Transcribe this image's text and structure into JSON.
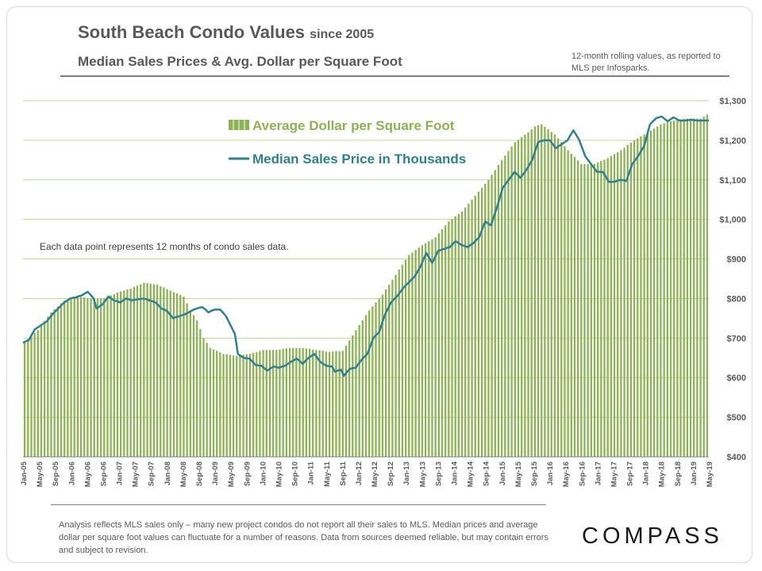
{
  "header": {
    "title": "South Beach Condo Values",
    "title_suffix": "since 2005",
    "subtitle": "Median Sales Prices & Avg. Dollar per Square Foot",
    "note": "12-month rolling values, as reported to MLS per Infosparks."
  },
  "footer": {
    "disclaimer": "Analysis reflects MLS sales only – many new project condos do not report all their sales to MLS. Median prices and average dollar per square foot values can fluctuate for a number of reasons. Data from sources deemed reliable, but may contain errors and subject to revision.",
    "logo": "COMPASS"
  },
  "colors": {
    "bar": "#8db255",
    "line": "#31808f",
    "grid": "#c3d69b",
    "text": "#595959"
  },
  "chart_data": {
    "type": "bar",
    "ylim": [
      400,
      1300
    ],
    "y_ticks": [
      "$400",
      "$500",
      "$600",
      "$700",
      "$800",
      "$900",
      "$1,000",
      "$1,100",
      "$1,200",
      "$1,300"
    ],
    "tick_labels": [
      "Jan-05",
      "May-05",
      "Sep-05",
      "Jan-06",
      "May-06",
      "Sep-06",
      "Jan-07",
      "May-07",
      "Sep-07",
      "Jan-08",
      "May-08",
      "Sep-08",
      "Jan-09",
      "May-09",
      "Sep-09",
      "Jan-10",
      "May-10",
      "Sep-10",
      "Jan-11",
      "May-11",
      "Sep-11",
      "Jan-12",
      "May-12",
      "Sep-12",
      "Jan-13",
      "May-13",
      "Sep-13",
      "Jan-14",
      "May-14",
      "Sep-14",
      "Jan-15",
      "May-15",
      "Sep-15",
      "Jan-16",
      "May-16",
      "Sep-16",
      "Jan-17",
      "May-17",
      "Sep-17",
      "Jan-18",
      "May-18",
      "Sep-18",
      "Jan-19",
      "May-19"
    ],
    "annotation": "Each data point represents 12 months of condo sales data.",
    "series": [
      {
        "name": "Average Dollar per Square Foot",
        "kind": "bar",
        "anchors": [
          [
            0,
            690
          ],
          [
            4,
            720
          ],
          [
            8,
            765
          ],
          [
            12,
            795
          ],
          [
            16,
            805
          ],
          [
            20,
            800
          ],
          [
            24,
            800
          ],
          [
            28,
            815
          ],
          [
            32,
            825
          ],
          [
            36,
            840
          ],
          [
            40,
            835
          ],
          [
            44,
            820
          ],
          [
            48,
            805
          ],
          [
            50,
            770
          ],
          [
            52,
            745
          ],
          [
            54,
            700
          ],
          [
            56,
            675
          ],
          [
            60,
            660
          ],
          [
            64,
            655
          ],
          [
            68,
            660
          ],
          [
            72,
            670
          ],
          [
            76,
            670
          ],
          [
            80,
            675
          ],
          [
            84,
            675
          ],
          [
            88,
            670
          ],
          [
            92,
            665
          ],
          [
            96,
            668
          ],
          [
            100,
            720
          ],
          [
            104,
            770
          ],
          [
            108,
            810
          ],
          [
            112,
            860
          ],
          [
            116,
            910
          ],
          [
            120,
            935
          ],
          [
            124,
            955
          ],
          [
            128,
            995
          ],
          [
            132,
            1020
          ],
          [
            136,
            1060
          ],
          [
            140,
            1100
          ],
          [
            144,
            1150
          ],
          [
            148,
            1195
          ],
          [
            152,
            1220
          ],
          [
            154,
            1235
          ],
          [
            156,
            1240
          ],
          [
            160,
            1215
          ],
          [
            164,
            1175
          ],
          [
            168,
            1140
          ],
          [
            172,
            1140
          ],
          [
            176,
            1155
          ],
          [
            180,
            1175
          ],
          [
            184,
            1200
          ],
          [
            188,
            1220
          ],
          [
            192,
            1240
          ],
          [
            196,
            1250
          ],
          [
            200,
            1255
          ],
          [
            204,
            1255
          ],
          [
            206,
            1265
          ]
        ]
      },
      {
        "name": "Median Sales Price in Thousands",
        "kind": "line",
        "anchors": [
          [
            0,
            688
          ],
          [
            2,
            695
          ],
          [
            4,
            722
          ],
          [
            6,
            732
          ],
          [
            8,
            742
          ],
          [
            10,
            760
          ],
          [
            12,
            775
          ],
          [
            14,
            790
          ],
          [
            16,
            800
          ],
          [
            18,
            803
          ],
          [
            20,
            808
          ],
          [
            22,
            817
          ],
          [
            24,
            800
          ],
          [
            25,
            775
          ],
          [
            27,
            785
          ],
          [
            29,
            805
          ],
          [
            31,
            795
          ],
          [
            33,
            790
          ],
          [
            35,
            800
          ],
          [
            37,
            795
          ],
          [
            39,
            798
          ],
          [
            41,
            800
          ],
          [
            43,
            795
          ],
          [
            45,
            790
          ],
          [
            47,
            775
          ],
          [
            49,
            768
          ],
          [
            51,
            750
          ],
          [
            53,
            755
          ],
          [
            55,
            760
          ],
          [
            57,
            768
          ],
          [
            59,
            775
          ],
          [
            61,
            778
          ],
          [
            63,
            765
          ],
          [
            65,
            772
          ],
          [
            67,
            772
          ],
          [
            69,
            755
          ],
          [
            71,
            725
          ],
          [
            72,
            710
          ],
          [
            73,
            660
          ],
          [
            75,
            650
          ],
          [
            77,
            648
          ],
          [
            79,
            632
          ],
          [
            81,
            630
          ],
          [
            83,
            618
          ],
          [
            85,
            628
          ],
          [
            87,
            625
          ],
          [
            89,
            630
          ],
          [
            91,
            640
          ],
          [
            93,
            648
          ],
          [
            95,
            635
          ],
          [
            97,
            650
          ],
          [
            99,
            660
          ],
          [
            101,
            640
          ],
          [
            103,
            630
          ],
          [
            105,
            628
          ],
          [
            106,
            615
          ],
          [
            108,
            620
          ],
          [
            109,
            605
          ],
          [
            111,
            622
          ],
          [
            113,
            625
          ],
          [
            115,
            645
          ],
          [
            117,
            660
          ],
          [
            119,
            700
          ],
          [
            121,
            715
          ],
          [
            123,
            760
          ],
          [
            125,
            790
          ],
          [
            127,
            805
          ],
          [
            129,
            825
          ],
          [
            131,
            840
          ],
          [
            133,
            855
          ],
          [
            135,
            880
          ],
          [
            137,
            915
          ],
          [
            139,
            890
          ],
          [
            141,
            920
          ],
          [
            143,
            925
          ],
          [
            145,
            930
          ],
          [
            147,
            945
          ],
          [
            149,
            935
          ],
          [
            151,
            930
          ],
          [
            153,
            940
          ],
          [
            155,
            955
          ],
          [
            157,
            995
          ],
          [
            159,
            985
          ],
          [
            161,
            1030
          ],
          [
            163,
            1080
          ],
          [
            165,
            1100
          ],
          [
            167,
            1120
          ],
          [
            169,
            1105
          ],
          [
            171,
            1125
          ],
          [
            173,
            1150
          ],
          [
            175,
            1195
          ],
          [
            177,
            1200
          ],
          [
            179,
            1200
          ],
          [
            181,
            1180
          ],
          [
            183,
            1190
          ],
          [
            185,
            1200
          ],
          [
            187,
            1225
          ],
          [
            189,
            1200
          ],
          [
            191,
            1160
          ],
          [
            193,
            1140
          ],
          [
            195,
            1120
          ],
          [
            197,
            1120
          ],
          [
            199,
            1095
          ],
          [
            201,
            1095
          ],
          [
            203,
            1100
          ],
          [
            205,
            1097
          ],
          [
            207,
            1140
          ],
          [
            209,
            1160
          ],
          [
            211,
            1185
          ],
          [
            213,
            1240
          ],
          [
            215,
            1255
          ],
          [
            217,
            1260
          ],
          [
            219,
            1248
          ],
          [
            221,
            1258
          ],
          [
            223,
            1250
          ],
          [
            225,
            1250
          ],
          [
            227,
            1252
          ],
          [
            229,
            1250
          ],
          [
            231,
            1250
          ],
          [
            233,
            1250
          ]
        ]
      }
    ]
  }
}
